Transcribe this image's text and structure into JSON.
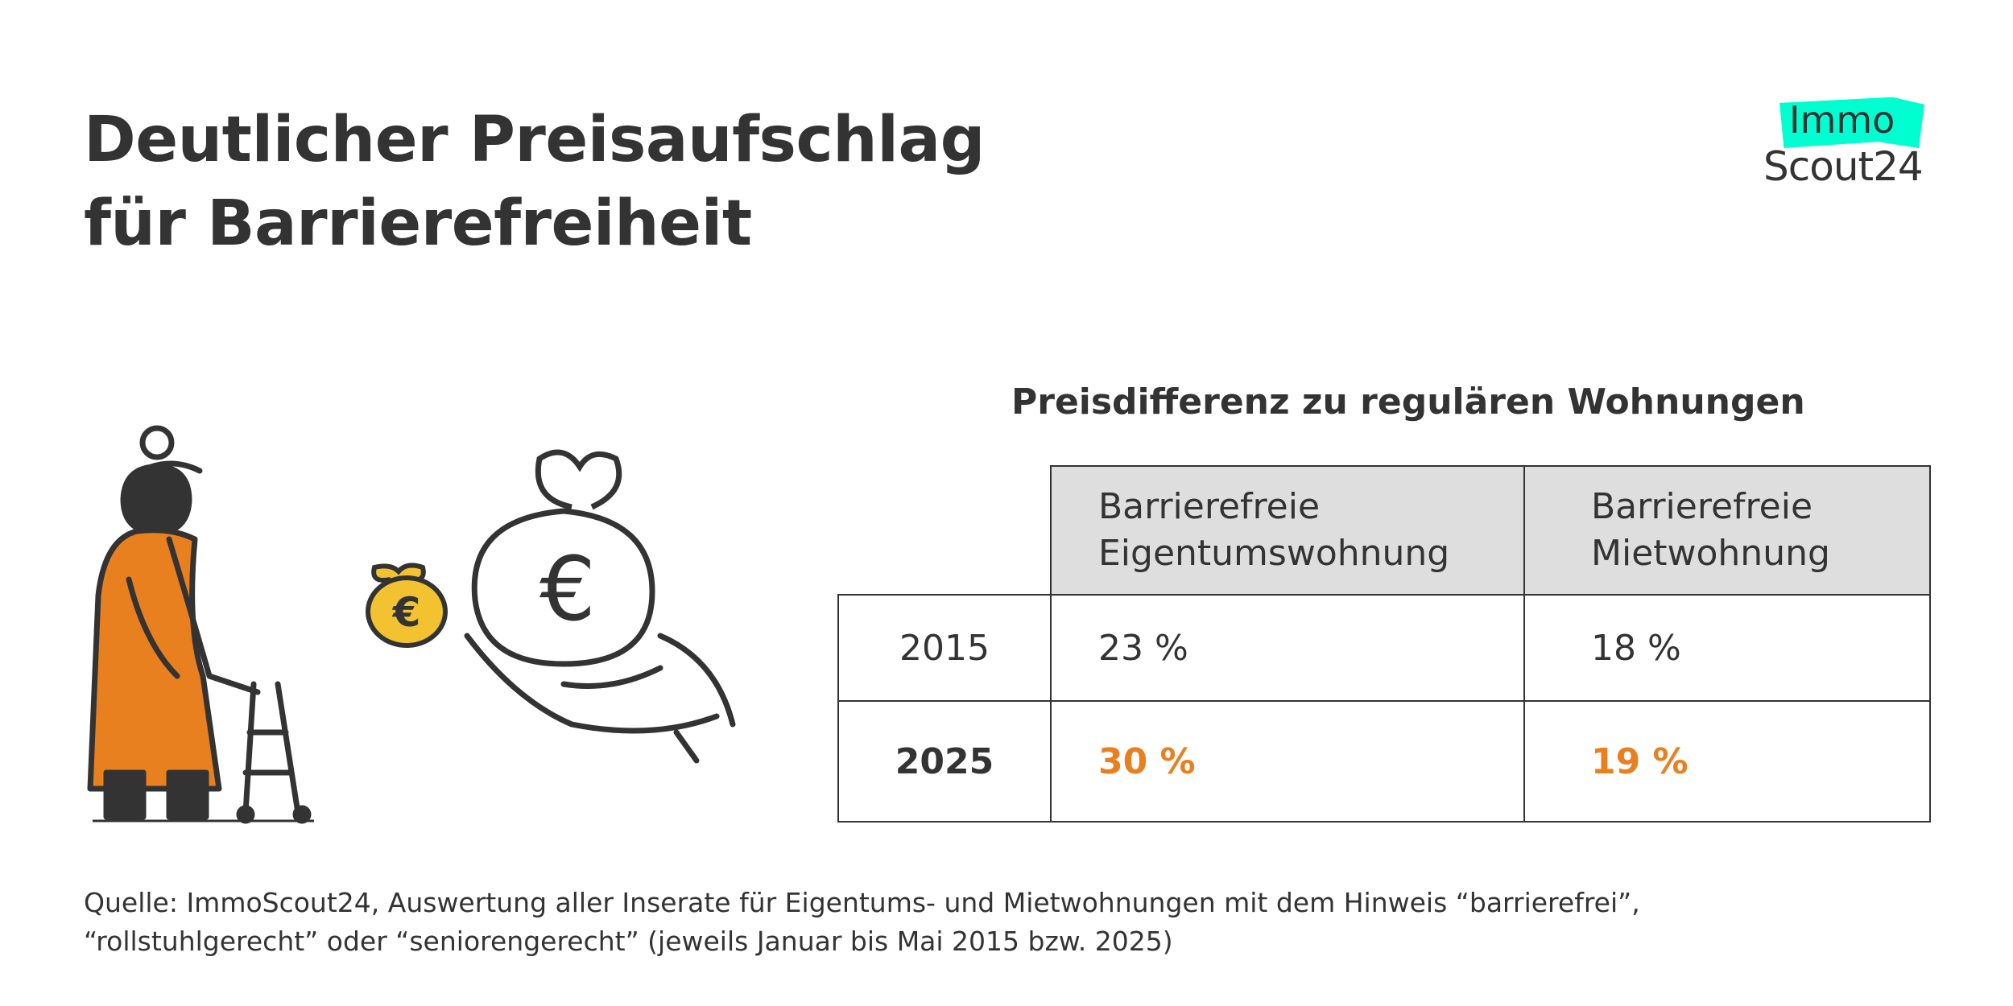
{
  "title": {
    "line1": "Deutlicher Preisaufschlag",
    "line2": "für Barrierefreiheit"
  },
  "logo": {
    "top": "Immo",
    "bottom": "Scout24",
    "accent": "#00ffd0"
  },
  "table": {
    "subtitle": "Preisdifferenz zu regulären Wohnungen",
    "headers": [
      {
        "line1": "Barrierefreie",
        "line2": "Eigentumswohnung"
      },
      {
        "line1": "Barrierefreie",
        "line2": "Mietwohnung"
      }
    ],
    "rows": [
      {
        "year": "2015",
        "values": [
          "23 %",
          "18 %"
        ]
      },
      {
        "year": "2025",
        "values": [
          "30 %",
          "19 %"
        ],
        "highlight": true
      }
    ],
    "highlight_color": "#e8801f",
    "header_bg": "#dedede"
  },
  "source": {
    "line1": "Quelle: ImmoScout24, Auswertung aller Inserate für Eigentums- und Mietwohnungen mit dem Hinweis “barrierefrei”,",
    "line2": "“rollstuhlgerecht” oder “seniorengerecht” (jeweils Januar bis Mai 2015 bzw. 2025)"
  },
  "illustration": {
    "icons": [
      "elderly-woman-with-walker",
      "small-money-bag-euro",
      "large-money-bag-euro",
      "open-hand"
    ]
  }
}
